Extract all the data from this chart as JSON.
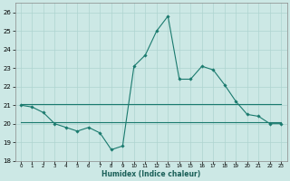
{
  "title": "",
  "xlabel": "Humidex (Indice chaleur)",
  "ylabel": "",
  "bg_color": "#cce8e5",
  "line_color": "#1a7a6e",
  "grid_color": "#aed4d0",
  "xlim": [
    -0.5,
    23.5
  ],
  "ylim": [
    18.0,
    26.5
  ],
  "yticks": [
    18,
    19,
    20,
    21,
    22,
    23,
    24,
    25,
    26
  ],
  "xticks": [
    0,
    1,
    2,
    3,
    4,
    5,
    6,
    7,
    8,
    9,
    10,
    11,
    12,
    13,
    14,
    15,
    16,
    17,
    18,
    19,
    20,
    21,
    22,
    23
  ],
  "line1_x": [
    0,
    1,
    2,
    3,
    4,
    5,
    6,
    7,
    8,
    9,
    10,
    11,
    12,
    13,
    14,
    15,
    16,
    17,
    18,
    19,
    20,
    21,
    22,
    23
  ],
  "line1_y": [
    21.0,
    20.9,
    20.6,
    20.0,
    19.8,
    19.6,
    19.8,
    19.5,
    18.6,
    18.8,
    23.1,
    23.7,
    25.0,
    25.8,
    22.4,
    22.4,
    23.1,
    22.9,
    22.1,
    21.2,
    20.5,
    20.4,
    20.0,
    20.0
  ],
  "line2_x": [
    0,
    23
  ],
  "line2_y": [
    21.05,
    21.05
  ],
  "line3_x": [
    0,
    23
  ],
  "line3_y": [
    20.1,
    20.1
  ],
  "figsize": [
    3.2,
    2.0
  ],
  "dpi": 100
}
